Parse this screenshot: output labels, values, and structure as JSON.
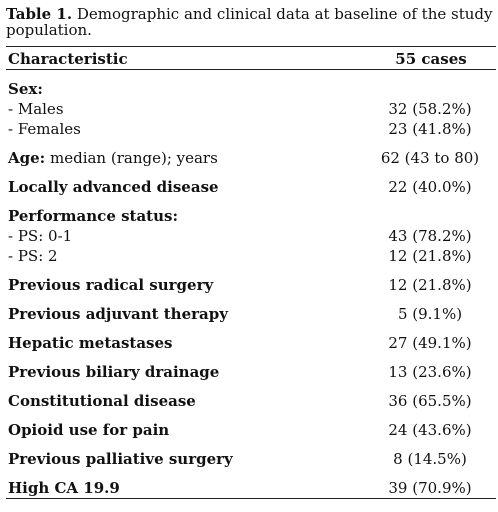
{
  "caption": {
    "label": "Table 1.",
    "text": "Demographic and clinical data at baseline of the study population."
  },
  "header": {
    "characteristic": "Characteristic",
    "cases": "55 cases"
  },
  "rows": {
    "sex": {
      "label": "Sex:"
    },
    "males": {
      "label": "- Males",
      "value": "32 (58.2%)"
    },
    "females": {
      "label": "- Females",
      "value": "23 (41.8%)"
    },
    "age": {
      "label_bold": "Age:",
      "label_rest": " median (range); years",
      "value": "62 (43 to 80)"
    },
    "locally_advanced": {
      "label": "Locally advanced disease",
      "value": "22 (40.0%)"
    },
    "performance": {
      "label": "Performance status:"
    },
    "ps01": {
      "label": "- PS: 0-1",
      "value": "43 (78.2%)"
    },
    "ps2": {
      "label": "- PS: 2",
      "value": "12 (21.8%)"
    },
    "radical_surgery": {
      "label": "Previous radical surgery",
      "value": "12 (21.8%)"
    },
    "adjuvant": {
      "label": "Previous adjuvant therapy",
      "value": "5 (9.1%)"
    },
    "hepatic": {
      "label": "Hepatic metastases",
      "value": "27 (49.1%)"
    },
    "biliary": {
      "label": "Previous biliary drainage",
      "value": "13 (23.6%)"
    },
    "constitutional": {
      "label": "Constitutional disease",
      "value": "36 (65.5%)"
    },
    "opioid": {
      "label": "Opioid use for pain",
      "value": "24 (43.6%)"
    },
    "palliative": {
      "label": "Previous palliative surgery",
      "value": "8 (14.5%)"
    },
    "ca199": {
      "label": "High CA 19.9",
      "value": "39 (70.9%)"
    }
  }
}
